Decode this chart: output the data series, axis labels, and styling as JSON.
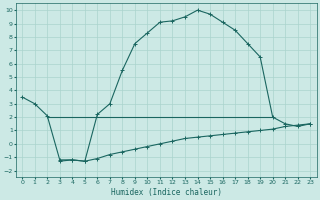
{
  "xlabel": "Humidex (Indice chaleur)",
  "xlim": [
    -0.5,
    23.5
  ],
  "ylim": [
    -2.5,
    10.5
  ],
  "xticks": [
    0,
    1,
    2,
    3,
    4,
    5,
    6,
    7,
    8,
    9,
    10,
    11,
    12,
    13,
    14,
    15,
    16,
    17,
    18,
    19,
    20,
    21,
    22,
    23
  ],
  "yticks": [
    -2,
    -1,
    0,
    1,
    2,
    3,
    4,
    5,
    6,
    7,
    8,
    9,
    10
  ],
  "bg_color": "#cce9e5",
  "grid_color": "#aad4ce",
  "line_color": "#1a6660",
  "curve1_x": [
    0,
    1,
    2,
    3,
    4,
    5,
    6,
    7,
    8,
    9,
    10,
    11,
    12,
    13,
    14,
    15,
    16,
    17,
    18,
    19,
    20,
    21,
    22,
    23
  ],
  "curve1_y": [
    3.5,
    3.0,
    2.1,
    -1.2,
    -1.2,
    -1.3,
    2.2,
    3.0,
    5.5,
    7.5,
    8.3,
    9.1,
    9.2,
    9.5,
    10.0,
    9.7,
    9.1,
    8.5,
    7.5,
    6.5,
    2.0,
    1.5,
    1.3,
    1.5
  ],
  "curve2_x": [
    2,
    3,
    10,
    20
  ],
  "curve2_y": [
    2.0,
    2.0,
    2.0,
    2.0
  ],
  "curve3_x": [
    3,
    4,
    5,
    6,
    7,
    8,
    9,
    10,
    11,
    12,
    13,
    14,
    15,
    16,
    17,
    18,
    19,
    20,
    21,
    22,
    23
  ],
  "curve3_y": [
    -1.3,
    -1.2,
    -1.3,
    -1.1,
    -0.8,
    -0.6,
    -0.4,
    -0.2,
    0.0,
    0.2,
    0.4,
    0.5,
    0.6,
    0.7,
    0.8,
    0.9,
    1.0,
    1.1,
    1.3,
    1.4,
    1.5
  ]
}
